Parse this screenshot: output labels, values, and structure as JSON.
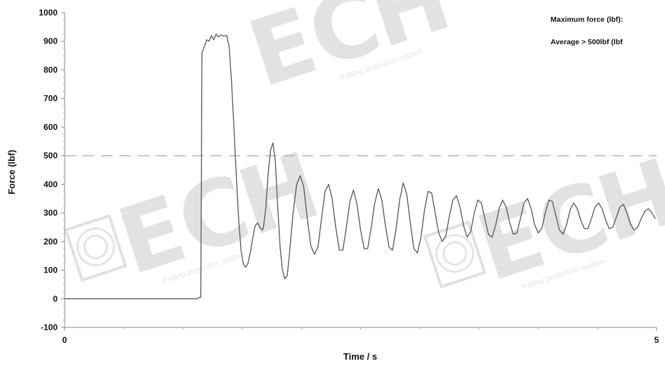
{
  "chart_data": {
    "type": "line",
    "title": "",
    "xlabel": "Time / s",
    "ylabel": "Force (lbf)",
    "xlim": [
      0,
      5
    ],
    "ylim": [
      -100,
      1000
    ],
    "x_ticks": [
      "0",
      "5"
    ],
    "y_ticks": [
      "-100",
      "0",
      "100",
      "200",
      "300",
      "400",
      "500",
      "600",
      "700",
      "800",
      "900",
      "1000"
    ],
    "grid": false,
    "annotations": [
      "Maximum force (lbf):",
      "Average > 500lbf (lbf"
    ],
    "reference_line": {
      "y": 500,
      "style": "dashed",
      "color": "#e8a0a0"
    },
    "series": [
      {
        "color": "#555555",
        "points": [
          [
            0.0,
            0
          ],
          [
            1.12,
            0
          ],
          [
            1.14,
            5
          ],
          [
            1.15,
            5
          ],
          [
            1.16,
            860
          ],
          [
            1.18,
            880
          ],
          [
            1.2,
            905
          ],
          [
            1.22,
            900
          ],
          [
            1.24,
            920
          ],
          [
            1.26,
            905
          ],
          [
            1.28,
            925
          ],
          [
            1.3,
            915
          ],
          [
            1.32,
            922
          ],
          [
            1.34,
            918
          ],
          [
            1.37,
            920
          ],
          [
            1.39,
            880
          ],
          [
            1.41,
            760
          ],
          [
            1.43,
            600
          ],
          [
            1.45,
            430
          ],
          [
            1.47,
            280
          ],
          [
            1.49,
            170
          ],
          [
            1.51,
            120
          ],
          [
            1.53,
            110
          ],
          [
            1.55,
            125
          ],
          [
            1.57,
            165
          ],
          [
            1.59,
            215
          ],
          [
            1.61,
            255
          ],
          [
            1.63,
            265
          ],
          [
            1.65,
            250
          ],
          [
            1.67,
            240
          ],
          [
            1.68,
            250
          ],
          [
            1.7,
            320
          ],
          [
            1.72,
            440
          ],
          [
            1.74,
            520
          ],
          [
            1.76,
            545
          ],
          [
            1.78,
            480
          ],
          [
            1.8,
            320
          ],
          [
            1.82,
            180
          ],
          [
            1.84,
            100
          ],
          [
            1.86,
            70
          ],
          [
            1.88,
            80
          ],
          [
            1.9,
            160
          ],
          [
            1.93,
            300
          ],
          [
            1.96,
            400
          ],
          [
            1.99,
            430
          ],
          [
            2.02,
            390
          ],
          [
            2.05,
            280
          ],
          [
            2.08,
            185
          ],
          [
            2.11,
            155
          ],
          [
            2.14,
            180
          ],
          [
            2.17,
            280
          ],
          [
            2.2,
            375
          ],
          [
            2.23,
            400
          ],
          [
            2.26,
            350
          ],
          [
            2.29,
            250
          ],
          [
            2.32,
            170
          ],
          [
            2.35,
            170
          ],
          [
            2.38,
            250
          ],
          [
            2.41,
            340
          ],
          [
            2.44,
            380
          ],
          [
            2.47,
            330
          ],
          [
            2.5,
            240
          ],
          [
            2.53,
            175
          ],
          [
            2.56,
            175
          ],
          [
            2.59,
            250
          ],
          [
            2.62,
            335
          ],
          [
            2.65,
            385
          ],
          [
            2.68,
            345
          ],
          [
            2.71,
            255
          ],
          [
            2.74,
            180
          ],
          [
            2.77,
            170
          ],
          [
            2.8,
            245
          ],
          [
            2.83,
            345
          ],
          [
            2.86,
            405
          ],
          [
            2.89,
            365
          ],
          [
            2.92,
            265
          ],
          [
            2.95,
            175
          ],
          [
            2.98,
            160
          ],
          [
            3.01,
            215
          ],
          [
            3.04,
            310
          ],
          [
            3.07,
            375
          ],
          [
            3.1,
            370
          ],
          [
            3.13,
            300
          ],
          [
            3.16,
            230
          ],
          [
            3.19,
            200
          ],
          [
            3.22,
            220
          ],
          [
            3.25,
            290
          ],
          [
            3.28,
            345
          ],
          [
            3.31,
            360
          ],
          [
            3.34,
            320
          ],
          [
            3.37,
            255
          ],
          [
            3.4,
            215
          ],
          [
            3.43,
            235
          ],
          [
            3.46,
            300
          ],
          [
            3.49,
            345
          ],
          [
            3.52,
            335
          ],
          [
            3.55,
            280
          ],
          [
            3.58,
            225
          ],
          [
            3.61,
            215
          ],
          [
            3.64,
            255
          ],
          [
            3.67,
            315
          ],
          [
            3.7,
            345
          ],
          [
            3.73,
            320
          ],
          [
            3.76,
            265
          ],
          [
            3.79,
            225
          ],
          [
            3.82,
            230
          ],
          [
            3.85,
            280
          ],
          [
            3.88,
            335
          ],
          [
            3.91,
            350
          ],
          [
            3.94,
            315
          ],
          [
            3.97,
            260
          ],
          [
            4.0,
            230
          ],
          [
            4.03,
            245
          ],
          [
            4.06,
            300
          ],
          [
            4.09,
            345
          ],
          [
            4.12,
            340
          ],
          [
            4.15,
            290
          ],
          [
            4.18,
            240
          ],
          [
            4.21,
            225
          ],
          [
            4.24,
            260
          ],
          [
            4.27,
            310
          ],
          [
            4.3,
            335
          ],
          [
            4.33,
            315
          ],
          [
            4.36,
            275
          ],
          [
            4.39,
            245
          ],
          [
            4.42,
            245
          ],
          [
            4.45,
            280
          ],
          [
            4.48,
            320
          ],
          [
            4.51,
            335
          ],
          [
            4.54,
            315
          ],
          [
            4.57,
            275
          ],
          [
            4.6,
            245
          ],
          [
            4.63,
            250
          ],
          [
            4.66,
            285
          ],
          [
            4.69,
            320
          ],
          [
            4.72,
            330
          ],
          [
            4.75,
            300
          ],
          [
            4.78,
            260
          ],
          [
            4.81,
            240
          ],
          [
            4.84,
            250
          ],
          [
            4.87,
            280
          ],
          [
            4.9,
            305
          ],
          [
            4.93,
            315
          ],
          [
            4.96,
            300
          ],
          [
            4.99,
            280
          ]
        ]
      }
    ]
  }
}
